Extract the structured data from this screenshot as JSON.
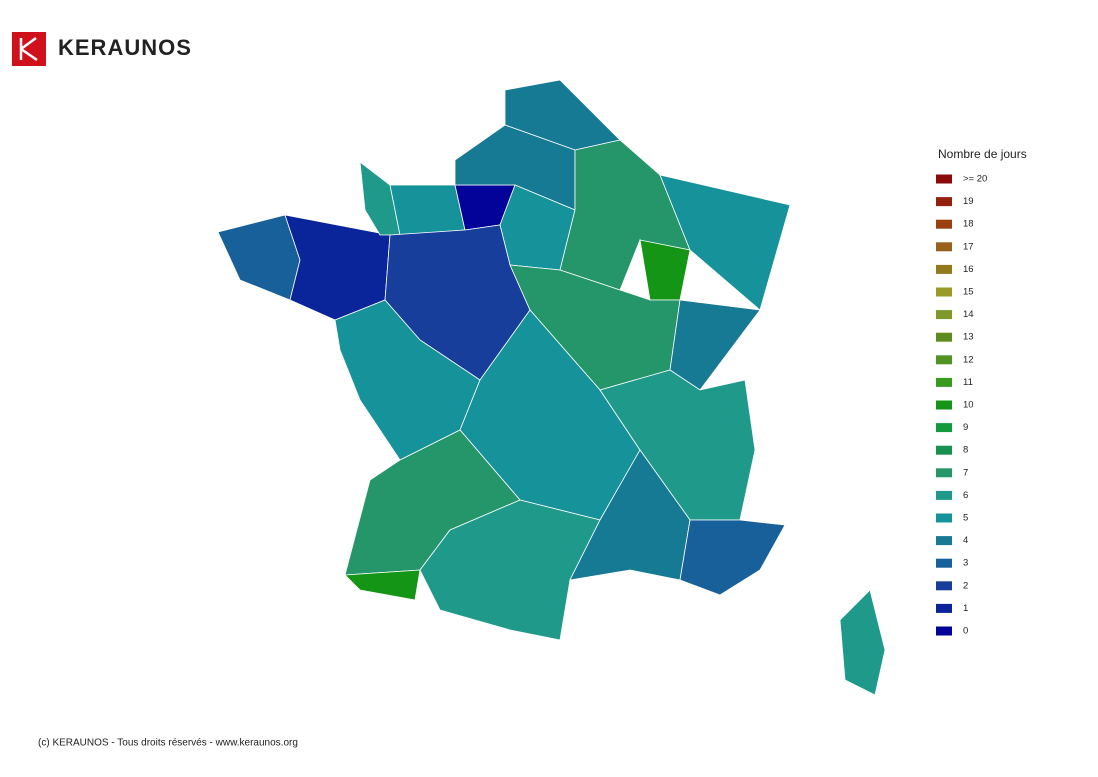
{
  "header": {
    "brand": "KERAUNOS"
  },
  "legend": {
    "title": "Nombre de jours",
    "items": [
      {
        "label": ">= 20",
        "value": 20,
        "color": "#8b0a0a"
      },
      {
        "value": 19,
        "color": "#95200e"
      },
      {
        "value": 18,
        "color": "#9a4010"
      },
      {
        "value": 17,
        "color": "#98601a"
      },
      {
        "value": 16,
        "color": "#927a1c"
      },
      {
        "value": 15,
        "color": "#9a9a26"
      },
      {
        "value": 14,
        "color": "#7f9a2a"
      },
      {
        "value": 13,
        "color": "#5e8c20"
      },
      {
        "value": 12,
        "color": "#4f9422"
      },
      {
        "value": 11,
        "color": "#3a9a20"
      },
      {
        "value": 10,
        "color": "#159515"
      },
      {
        "value": 9,
        "color": "#139a3a"
      },
      {
        "value": 8,
        "color": "#1a9050"
      },
      {
        "value": 7,
        "color": "#25956a"
      },
      {
        "value": 6,
        "color": "#1f9a8a"
      },
      {
        "value": 5,
        "color": "#16929a"
      },
      {
        "value": 4,
        "color": "#177a95"
      },
      {
        "value": 3,
        "color": "#17609a"
      },
      {
        "value": 2,
        "color": "#173e9a"
      },
      {
        "value": 1,
        "color": "#0a249a"
      },
      {
        "value": 0,
        "color": "#03039a"
      }
    ]
  },
  "map": {
    "values": [
      3,
      1,
      6,
      5,
      0,
      4,
      4,
      5,
      7,
      10,
      5,
      2,
      7,
      4,
      5,
      5,
      6,
      7,
      10,
      6,
      4,
      3,
      6
    ]
  },
  "footer": {
    "text": "(c) KERAUNOS - Tous droits réservés - www.keraunos.org"
  }
}
